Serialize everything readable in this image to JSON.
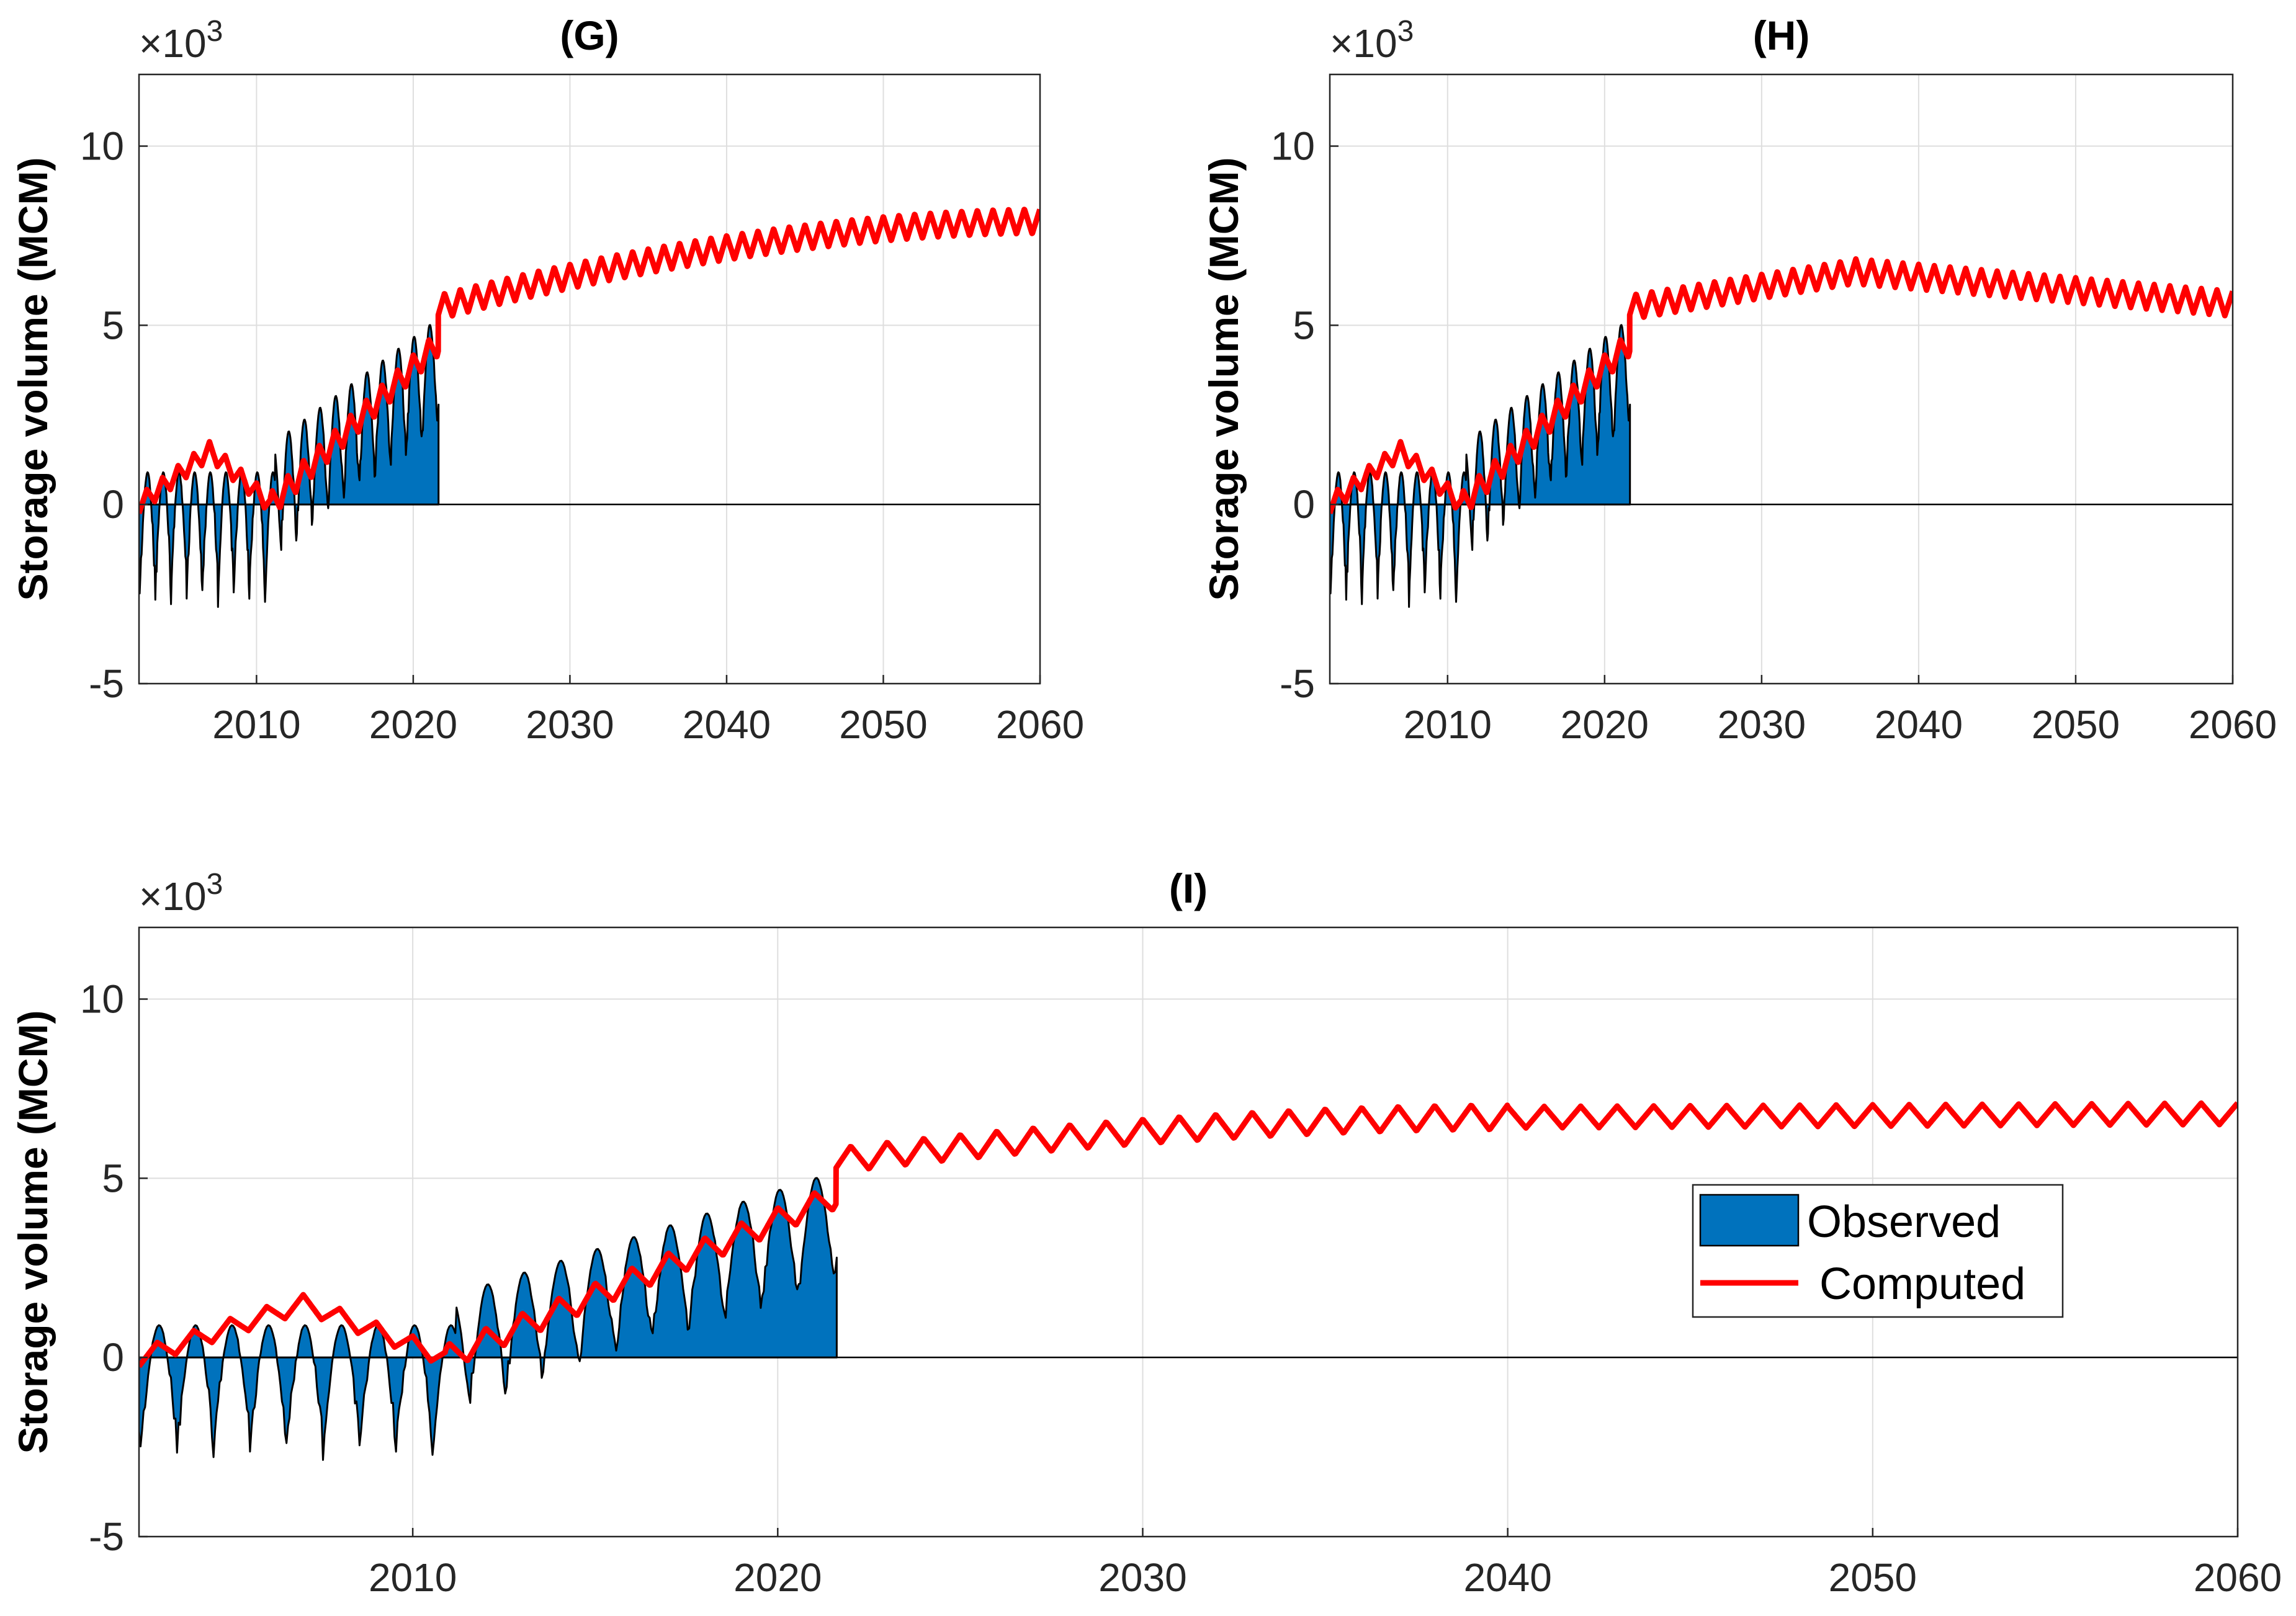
{
  "chart_data": [
    {
      "id": "G",
      "type": "area",
      "title": "(G)",
      "xlabel": "",
      "ylabel": "Storage volume (MCM)",
      "y_multiplier": "×10",
      "y_multiplier_exp": "3",
      "xlim": [
        2002.5,
        2060
      ],
      "ylim": [
        -5,
        12
      ],
      "xticks": [
        2010,
        2020,
        2030,
        2040,
        2050,
        2060
      ],
      "yticks": [
        -5,
        0,
        5,
        10
      ],
      "grid": true,
      "legend": false,
      "series": [
        {
          "name": "Observed",
          "kind": "area",
          "color": "#0072BD",
          "segments": [
            {
              "start": 2002.5,
              "end": 2011.2,
              "baseline": 0.0,
              "slope": 0.0,
              "amp": 2.7
            },
            {
              "start": 2011.2,
              "end": 2021.65,
              "baseline": 0.5,
              "slope": 0.33,
              "amp": 2.2
            }
          ]
        },
        {
          "name": "Computed",
          "kind": "line",
          "color": "#FF0000",
          "segments": [
            {
              "start": 2002.5,
              "end": 2007.0,
              "from": 0.0,
              "to": 1.5,
              "amp": 0.25
            },
            {
              "start": 2007.0,
              "end": 2010.9,
              "from": 1.5,
              "to": 0.0,
              "amp": 0.25
            },
            {
              "start": 2010.9,
              "end": 2021.6,
              "from": 0.0,
              "to": 4.5,
              "amp": 0.35
            },
            {
              "start": 2021.6,
              "end": 2060,
              "from": 5.5,
              "to": 7.9,
              "amp": 0.35,
              "curve": "concave"
            }
          ]
        }
      ]
    },
    {
      "id": "H",
      "type": "area",
      "title": "(H)",
      "xlabel": "",
      "ylabel": "Storage volume (MCM)",
      "y_multiplier": "×10",
      "y_multiplier_exp": "3",
      "xlim": [
        2002.5,
        2060
      ],
      "ylim": [
        -5,
        12
      ],
      "xticks": [
        2010,
        2020,
        2030,
        2040,
        2050,
        2060
      ],
      "yticks": [
        -5,
        0,
        5,
        10
      ],
      "grid": true,
      "legend": false,
      "series": [
        {
          "name": "Observed",
          "kind": "area",
          "color": "#0072BD",
          "segments": [
            {
              "start": 2002.5,
              "end": 2011.2,
              "baseline": 0.0,
              "slope": 0.0,
              "amp": 2.7
            },
            {
              "start": 2011.2,
              "end": 2021.65,
              "baseline": 0.5,
              "slope": 0.33,
              "amp": 2.2
            }
          ]
        },
        {
          "name": "Computed",
          "kind": "line",
          "color": "#FF0000",
          "segments": [
            {
              "start": 2002.5,
              "end": 2007.0,
              "from": 0.0,
              "to": 1.5,
              "amp": 0.25
            },
            {
              "start": 2007.0,
              "end": 2010.9,
              "from": 1.5,
              "to": 0.0,
              "amp": 0.25
            },
            {
              "start": 2010.9,
              "end": 2021.6,
              "from": 0.0,
              "to": 4.5,
              "amp": 0.35
            },
            {
              "start": 2021.6,
              "end": 2036.0,
              "from": 5.5,
              "to": 6.5,
              "amp": 0.35
            },
            {
              "start": 2036.0,
              "end": 2060,
              "from": 6.5,
              "to": 5.6,
              "amp": 0.35
            }
          ]
        }
      ]
    },
    {
      "id": "I",
      "type": "area",
      "title": "(I)",
      "xlabel": "",
      "ylabel": "Storage volume (MCM)",
      "y_multiplier": "×10",
      "y_multiplier_exp": "3",
      "xlim": [
        2002.5,
        2060
      ],
      "ylim": [
        -5,
        12
      ],
      "xticks": [
        2010,
        2020,
        2030,
        2040,
        2050,
        2060
      ],
      "yticks": [
        -5,
        0,
        5,
        10
      ],
      "grid": true,
      "legend": true,
      "legend_location": "right",
      "legend_entries": [
        "Observed",
        "Computed"
      ],
      "series": [
        {
          "name": "Observed",
          "kind": "area",
          "color": "#0072BD",
          "segments": [
            {
              "start": 2002.5,
              "end": 2011.2,
              "baseline": 0.0,
              "slope": 0.0,
              "amp": 2.7
            },
            {
              "start": 2011.2,
              "end": 2021.65,
              "baseline": 0.5,
              "slope": 0.33,
              "amp": 2.2
            }
          ]
        },
        {
          "name": "Computed",
          "kind": "line",
          "color": "#FF0000",
          "segments": [
            {
              "start": 2002.5,
              "end": 2007.0,
              "from": 0.0,
              "to": 1.5,
              "amp": 0.25
            },
            {
              "start": 2007.0,
              "end": 2010.9,
              "from": 1.5,
              "to": 0.0,
              "amp": 0.25
            },
            {
              "start": 2010.9,
              "end": 2021.6,
              "from": 0.0,
              "to": 4.5,
              "amp": 0.35
            },
            {
              "start": 2021.6,
              "end": 2040.0,
              "from": 5.5,
              "to": 6.7,
              "amp": 0.35,
              "curve": "concave"
            },
            {
              "start": 2040.0,
              "end": 2060,
              "from": 6.7,
              "to": 6.8,
              "amp": 0.3
            }
          ]
        }
      ]
    }
  ]
}
